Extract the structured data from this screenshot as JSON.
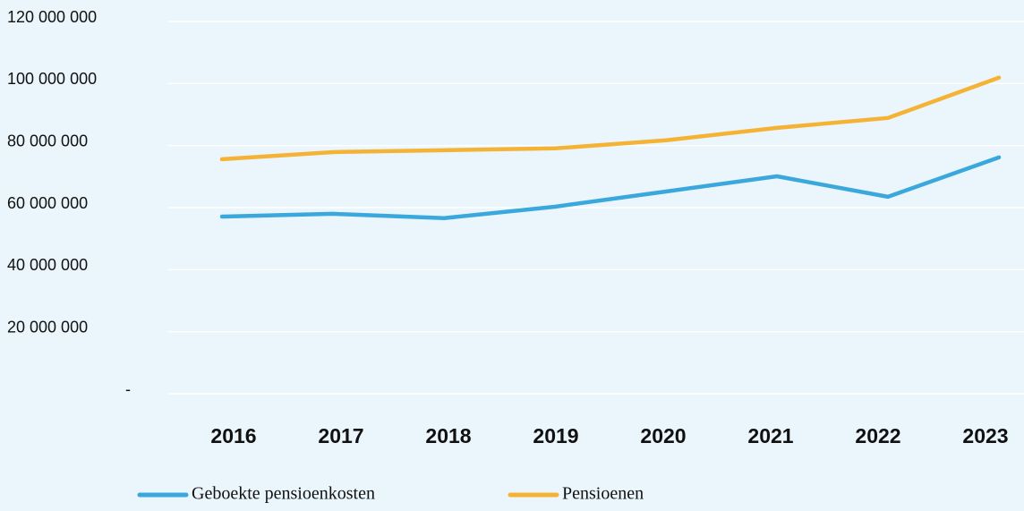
{
  "chart_data": {
    "type": "line",
    "categories": [
      "2016",
      "2017",
      "2018",
      "2019",
      "2020",
      "2021",
      "2022",
      "2023"
    ],
    "series": [
      {
        "name": "Geboekte pensioenkosten",
        "color": "#3aa8dc",
        "values": [
          57100000,
          58000000,
          56600000,
          60300000,
          65200000,
          70100000,
          63500000,
          76200000
        ]
      },
      {
        "name": "Pensioenen",
        "color": "#f5b335",
        "values": [
          75600000,
          77900000,
          78500000,
          79100000,
          81700000,
          85700000,
          88900000,
          101900000
        ]
      }
    ],
    "ylim": [
      0,
      120000000
    ],
    "yticks": [
      {
        "value": 0,
        "label": "-"
      },
      {
        "value": 20000000,
        "label": "20 000 000"
      },
      {
        "value": 40000000,
        "label": "40 000 000"
      },
      {
        "value": 60000000,
        "label": "60 000 000"
      },
      {
        "value": 80000000,
        "label": "80 000 000"
      },
      {
        "value": 100000000,
        "label": "100 000 000"
      },
      {
        "value": 120000000,
        "label": "120 000 000"
      }
    ],
    "grid": true,
    "legend": "bottom"
  }
}
